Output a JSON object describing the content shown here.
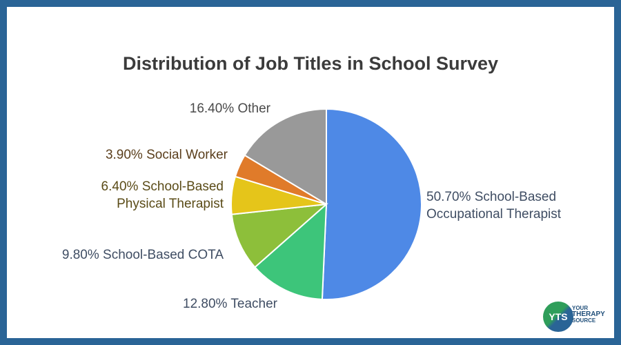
{
  "logo": {
    "mark": "YTS",
    "line1": "YOUR",
    "line2": "THERAPY",
    "line3": "SOURCE"
  },
  "chart_data": {
    "type": "pie",
    "title": "Distribution of Job Titles in School Survey",
    "slices": [
      {
        "label": "50.70% School-Based Occupational Therapist",
        "lines": [
          "50.70% School-Based",
          "Occupational Therapist"
        ],
        "value": 50.7,
        "color": "#4e89e6",
        "label_color": "#3f4d63"
      },
      {
        "label": "12.80% Teacher",
        "lines": [
          "12.80% Teacher"
        ],
        "value": 12.8,
        "color": "#3dc57a",
        "label_color": "#3f4d63"
      },
      {
        "label": "9.80% School-Based COTA",
        "lines": [
          "9.80% School-Based COTA"
        ],
        "value": 9.8,
        "color": "#8dbf3a",
        "label_color": "#3f4d63"
      },
      {
        "label": "6.40% School-Based Physical Therapist",
        "lines": [
          "6.40% School-Based",
          "Physical Therapist"
        ],
        "value": 6.4,
        "color": "#e5c51a",
        "label_color": "#5a4b17"
      },
      {
        "label": "3.90% Social Worker",
        "lines": [
          "3.90% Social Worker"
        ],
        "value": 3.9,
        "color": "#e07b2a",
        "label_color": "#5a3e1c"
      },
      {
        "label": "16.40% Other",
        "lines": [
          "16.40% Other"
        ],
        "value": 16.4,
        "color": "#999999",
        "label_color": "#4a4a4a"
      }
    ],
    "start_angle": "top",
    "direction": "clockwise"
  }
}
